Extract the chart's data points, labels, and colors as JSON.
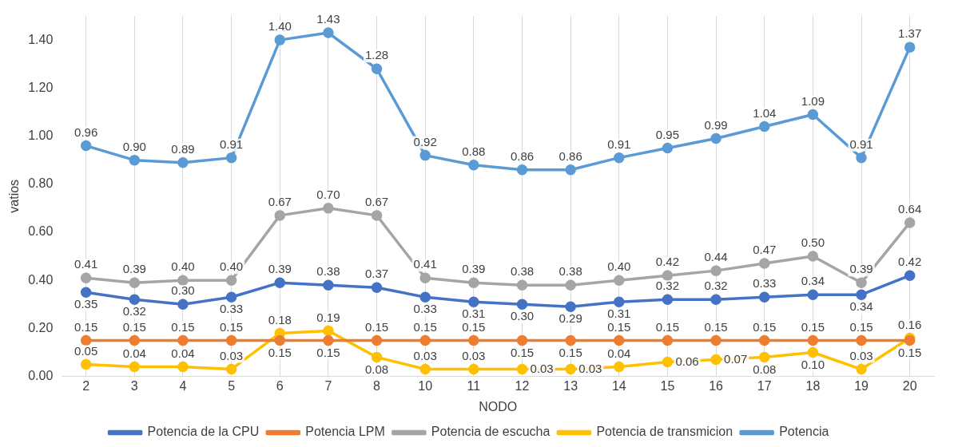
{
  "chart_data": {
    "type": "line",
    "xlabel": "NODO",
    "ylabel": "vatios",
    "categories": [
      "2",
      "3",
      "4",
      "5",
      "6",
      "7",
      "8",
      "10",
      "11",
      "12",
      "13",
      "14",
      "15",
      "16",
      "17",
      "18",
      "19",
      "20"
    ],
    "ylim": [
      0,
      1.5
    ],
    "yticks": [
      {
        "value": 0,
        "label": "0.00"
      },
      {
        "value": 0.2,
        "label": "0.20"
      },
      {
        "value": 0.4,
        "label": "0.40"
      },
      {
        "value": 0.6,
        "label": "0.60"
      },
      {
        "value": 0.8,
        "label": "0.80"
      },
      {
        "value": 1,
        "label": "1.00"
      },
      {
        "value": 1.2,
        "label": "1.20"
      },
      {
        "value": 1.4,
        "label": "1.40"
      }
    ],
    "grid": "x",
    "legend": "bottom",
    "marker": "circle",
    "series": [
      {
        "name": "Potencia de la CPU",
        "color": "#4472c4",
        "values": [
          0.35,
          0.32,
          0.3,
          0.33,
          0.39,
          0.38,
          0.37,
          0.33,
          0.31,
          0.3,
          0.29,
          0.31,
          0.32,
          0.32,
          0.33,
          0.34,
          0.34,
          0.42
        ],
        "value_labels": [
          "0.35",
          "0.32",
          "0.30",
          "0.33",
          "0.39",
          "0.38",
          "0.37",
          "0.33",
          "0.31",
          "0.30",
          "0.29",
          "0.31",
          "0.32",
          "0.32",
          "0.33",
          "0.34",
          "0.34",
          "0.42"
        ]
      },
      {
        "name": "Potencia LPM",
        "color": "#ed7d31",
        "values": [
          0.15,
          0.15,
          0.15,
          0.15,
          0.15,
          0.15,
          0.15,
          0.15,
          0.15,
          0.15,
          0.15,
          0.15,
          0.15,
          0.15,
          0.15,
          0.15,
          0.15,
          0.15
        ],
        "value_labels": [
          "0.15",
          "0.15",
          "0.15",
          "0.15",
          "0.15",
          "0.15",
          "0.15",
          "0.15",
          "0.15",
          "0.15",
          "0.15",
          "0.15",
          "0.15",
          "0.15",
          "0.15",
          "0.15",
          "0.15",
          "0.15"
        ]
      },
      {
        "name": "Potencia de escucha",
        "color": "#a5a5a5",
        "values": [
          0.41,
          0.39,
          0.4,
          0.4,
          0.67,
          0.7,
          0.67,
          0.41,
          0.39,
          0.38,
          0.38,
          0.4,
          0.42,
          0.44,
          0.47,
          0.5,
          0.39,
          0.64
        ],
        "value_labels": [
          "0.41",
          "0.39",
          "0.40",
          "0.40",
          "0.67",
          "0.70",
          "0.67",
          "0.41",
          "0.39",
          "0.38",
          "0.38",
          "0.40",
          "0.42",
          "0.44",
          "0.47",
          "0.50",
          "0.39",
          "0.64"
        ]
      },
      {
        "name": "Potencia de transmicion",
        "color": "#ffc000",
        "values": [
          0.05,
          0.04,
          0.04,
          0.03,
          0.18,
          0.19,
          0.08,
          0.03,
          0.03,
          0.03,
          0.03,
          0.04,
          0.06,
          0.07,
          0.08,
          0.1,
          0.03,
          0.16
        ],
        "value_labels": [
          "0.05",
          "0.04",
          "0.04",
          "0.03",
          "0.18",
          "0.19",
          "0.08",
          "0.03",
          "0.03",
          "0.03",
          "0.03",
          "0.04",
          "0.06",
          "0.07",
          "0.08",
          "0.10",
          "0.03",
          "0.16"
        ]
      },
      {
        "name": "Potencia",
        "color": "#5b9bd5",
        "values": [
          0.96,
          0.9,
          0.89,
          0.91,
          1.4,
          1.43,
          1.28,
          0.92,
          0.88,
          0.86,
          0.86,
          0.91,
          0.95,
          0.99,
          1.04,
          1.09,
          0.91,
          1.37
        ],
        "value_labels": [
          "0.96",
          "0.90",
          "0.89",
          "0.91",
          "1.40",
          "1.43",
          "1.28",
          "0.92",
          "0.88",
          "0.86",
          "0.86",
          "0.91",
          "0.95",
          "0.99",
          "1.04",
          "1.09",
          "0.91",
          "1.37"
        ]
      }
    ]
  }
}
